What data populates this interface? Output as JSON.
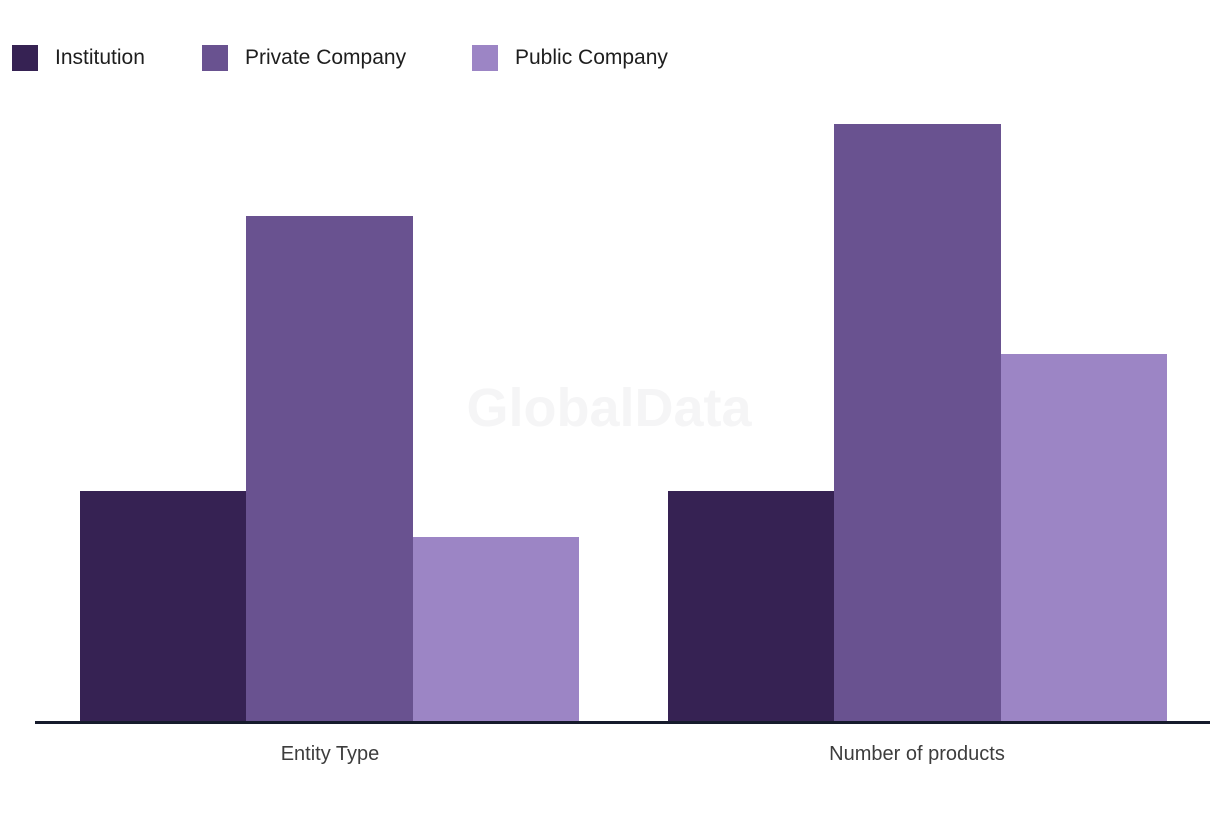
{
  "legend": {
    "items": [
      {
        "label": "Institution",
        "color": "#362253",
        "swatch_icon": "square-swatch-icon"
      },
      {
        "label": "Private Company",
        "color": "#695290",
        "swatch_icon": "square-swatch-icon"
      },
      {
        "label": "Public Company",
        "color": "#9C85C5",
        "swatch_icon": "square-swatch-icon"
      }
    ]
  },
  "watermark": {
    "text": "GlobalData",
    "color": "#F5F5F6"
  },
  "x_axis": {
    "labels": [
      "Entity Type",
      "Number of products"
    ]
  },
  "colors": {
    "background": "#FFFFFF",
    "axis_line": "#161B2C",
    "category_label_text": "#3D3D3D",
    "legend_text": "#1E1E1E"
  },
  "chart_data": {
    "type": "bar",
    "categories": [
      "Entity Type",
      "Number of products"
    ],
    "series": [
      {
        "name": "Institution",
        "color": "#362253",
        "values": [
          5,
          5
        ]
      },
      {
        "name": "Private Company",
        "color": "#695290",
        "values": [
          11,
          13
        ]
      },
      {
        "name": "Public Company",
        "color": "#9C85C5",
        "values": [
          4,
          8
        ]
      }
    ],
    "ylim": [
      0,
      13
    ],
    "xlabel": "",
    "ylabel": "",
    "y_axis_shown": false,
    "data_labels_shown": false,
    "grid": false,
    "legend_position": "top-left",
    "watermark": "GlobalData",
    "value_note": "No y-axis ticks or data labels are visible; values are estimated from relative bar heights (both Institution bars equal; tallest bar is Private Company under Number of products)."
  }
}
